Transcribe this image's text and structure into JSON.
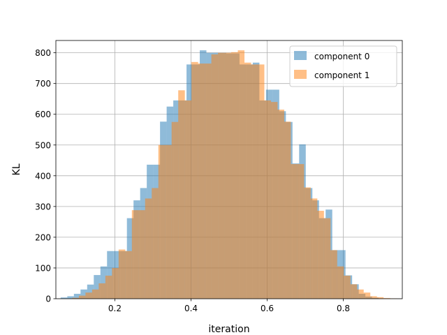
{
  "chart_data": {
    "type": "bar",
    "title": "",
    "xlabel": "iteration",
    "ylabel": "KL",
    "xlim": [
      0.045,
      0.955
    ],
    "ylim": [
      0,
      840
    ],
    "xticks": [
      0.2,
      0.4,
      0.6,
      0.8
    ],
    "xtick_labels": [
      "0.2",
      "0.4",
      "0.6",
      "0.8"
    ],
    "yticks": [
      0,
      100,
      200,
      300,
      400,
      500,
      600,
      700,
      800
    ],
    "ytick_labels": [
      "0",
      "100",
      "200",
      "300",
      "400",
      "500",
      "600",
      "700",
      "800"
    ],
    "grid": true,
    "legend_position": "top-right",
    "alpha": 0.5,
    "series": [
      {
        "name": "component 0",
        "color": "#1f77b4",
        "bin_width": 0.0174,
        "x": [
          0.0663,
          0.0837,
          0.1011,
          0.1185,
          0.1359,
          0.1533,
          0.1707,
          0.1881,
          0.2055,
          0.2229,
          0.2403,
          0.2577,
          0.2751,
          0.2925,
          0.3099,
          0.3273,
          0.3447,
          0.3621,
          0.3795,
          0.3969,
          0.4143,
          0.4317,
          0.4491,
          0.4665,
          0.4839,
          0.5013,
          0.5187,
          0.5361,
          0.5535,
          0.5709,
          0.5883,
          0.6057,
          0.6231,
          0.6405,
          0.6579,
          0.6753,
          0.6927,
          0.7101,
          0.7275,
          0.7449,
          0.7623,
          0.7797,
          0.7971,
          0.8145,
          0.8319,
          0.8493,
          0.8667,
          0.8841,
          0.9015
        ],
        "values": [
          4,
          8,
          16,
          30,
          46,
          77,
          105,
          155,
          155,
          155,
          262,
          320,
          360,
          436,
          436,
          576,
          625,
          645,
          645,
          762,
          762,
          808,
          800,
          800,
          800,
          798,
          798,
          762,
          762,
          768,
          645,
          680,
          680,
          610,
          575,
          440,
          502,
          360,
          320,
          262,
          290,
          158,
          158,
          76,
          47,
          16,
          7,
          3,
          1
        ]
      },
      {
        "name": "component 1",
        "color": "#ff7f0e",
        "bin_width": 0.0174,
        "x": [
          0.0967,
          0.1141,
          0.1315,
          0.1489,
          0.1663,
          0.1837,
          0.2011,
          0.2185,
          0.2359,
          0.2533,
          0.2707,
          0.2881,
          0.3055,
          0.3229,
          0.3403,
          0.3577,
          0.3751,
          0.3925,
          0.4099,
          0.4273,
          0.4447,
          0.4621,
          0.4795,
          0.4969,
          0.5143,
          0.5317,
          0.5491,
          0.5665,
          0.5839,
          0.6013,
          0.6187,
          0.6361,
          0.6535,
          0.6709,
          0.6883,
          0.7057,
          0.7231,
          0.7405,
          0.7579,
          0.7753,
          0.7927,
          0.8101,
          0.8275,
          0.8449,
          0.8623,
          0.8797,
          0.8971,
          0.9145,
          0.9319
        ],
        "values": [
          3,
          10,
          20,
          30,
          50,
          75,
          100,
          160,
          155,
          288,
          288,
          326,
          360,
          500,
          500,
          575,
          678,
          645,
          770,
          765,
          765,
          795,
          800,
          800,
          802,
          808,
          768,
          762,
          762,
          645,
          640,
          615,
          576,
          438,
          438,
          362,
          326,
          286,
          262,
          158,
          105,
          75,
          47,
          30,
          20,
          8,
          5,
          2,
          1
        ]
      }
    ]
  }
}
